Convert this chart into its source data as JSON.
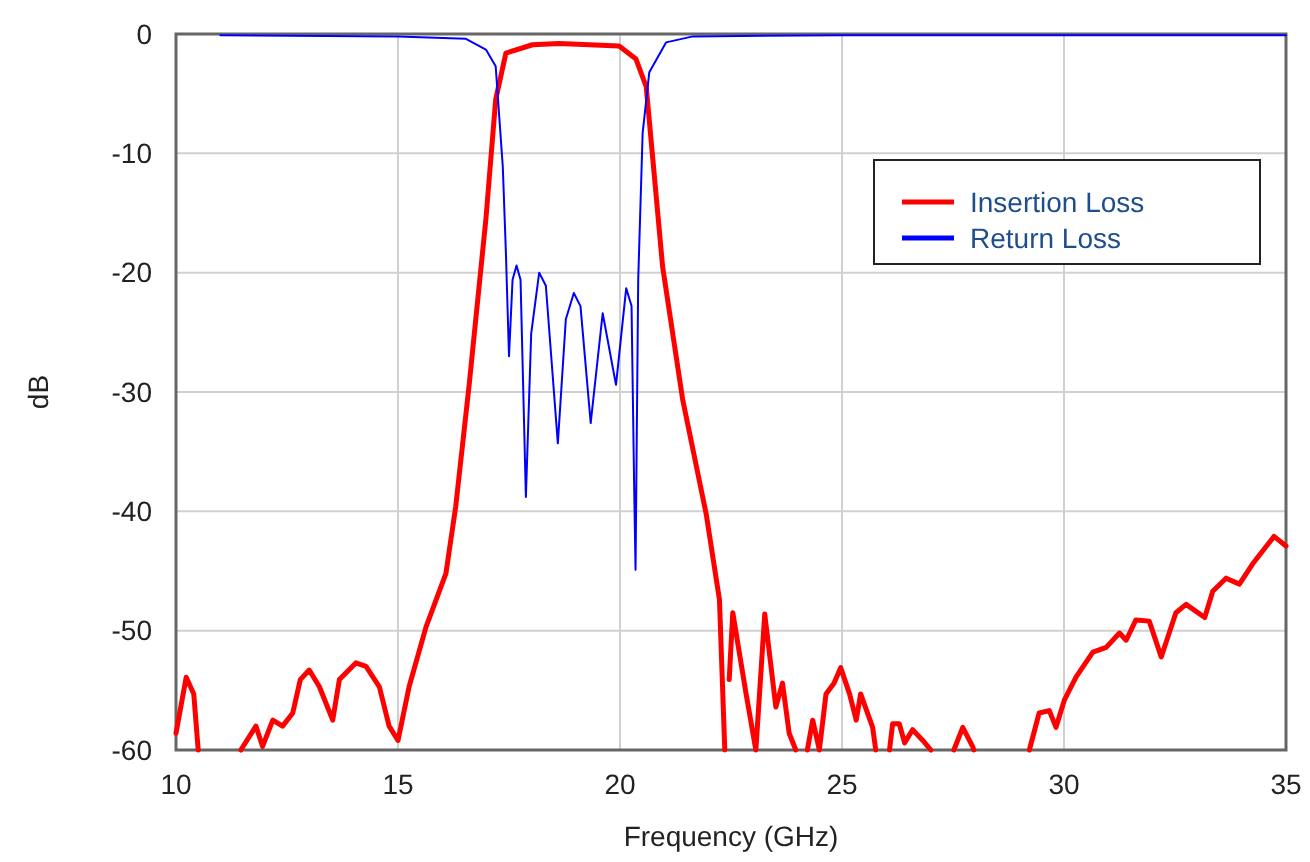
{
  "chart_data": {
    "type": "line",
    "xlabel": "Frequency (GHz)",
    "ylabel": "dB",
    "xlim": [
      10,
      35
    ],
    "ylim": [
      -60,
      0
    ],
    "xticks": [
      10,
      15,
      20,
      25,
      30,
      35
    ],
    "yticks": [
      -60,
      -50,
      -40,
      -30,
      -20,
      -10,
      0
    ],
    "grid": true,
    "legend": "top right",
    "marker": "none",
    "line_style": "solid",
    "series": [
      {
        "name": "Insertion Loss",
        "color": "#ff0000",
        "x": [
          10.0,
          10.23,
          10.4,
          10.5,
          10.55,
          11.4,
          11.46,
          11.8,
          11.95,
          12.18,
          12.4,
          12.63,
          12.8,
          13.0,
          13.23,
          13.53,
          13.68,
          14.05,
          14.28,
          14.58,
          14.8,
          15.0,
          15.25,
          15.63,
          16.08,
          16.3,
          16.6,
          16.98,
          17.2,
          17.43,
          18.03,
          18.63,
          19.98,
          20.36,
          20.59,
          20.96,
          21.41,
          21.94,
          22.24,
          22.36,
          22.4,
          22.46,
          22.54,
          22.84,
          23.06,
          23.26,
          23.51,
          23.66,
          23.81,
          23.96,
          24.0,
          24.22,
          24.34,
          24.49,
          24.64,
          24.82,
          24.97,
          25.17,
          25.32,
          25.42,
          25.69,
          25.76,
          25.8,
          26.07,
          26.14,
          26.29,
          26.41,
          26.59,
          26.82,
          27.0,
          27.2,
          27.52,
          27.72,
          27.94,
          27.97,
          28.5,
          29.22,
          29.44,
          29.67,
          29.82,
          30.01,
          30.27,
          30.65,
          30.95,
          31.25,
          31.4,
          31.62,
          31.92,
          32.19,
          32.52,
          32.75,
          33.17,
          33.35,
          33.65,
          33.95,
          34.25,
          34.73,
          35.0
        ],
        "values": [
          -58.6,
          -53.9,
          -55.3,
          -60,
          null,
          null,
          -60,
          -58,
          -59.7,
          -57.5,
          -58,
          -56.9,
          -54.1,
          -53.3,
          -54.7,
          -57.5,
          -54.1,
          -52.7,
          -53,
          -54.7,
          -58,
          -59.2,
          -54.7,
          -49.7,
          -45.2,
          -39.6,
          -29.5,
          -15.5,
          -5.5,
          -1.6,
          -0.9,
          -0.8,
          -1.0,
          -2.1,
          -4.4,
          -19.5,
          -30.6,
          -40.2,
          -47.4,
          -60,
          null,
          -54.1,
          -48.5,
          -55.3,
          -60,
          -48.6,
          -56.4,
          -54.4,
          -58.6,
          -60,
          null,
          -60,
          -57.5,
          -60,
          -55.3,
          -54.4,
          -53.1,
          -55.3,
          -57.5,
          -55.3,
          -58.1,
          -60,
          null,
          -60,
          -57.8,
          -57.8,
          -59.4,
          -58.3,
          -59.2,
          -60,
          null,
          -60,
          -58.1,
          -59.7,
          -60,
          null,
          -60,
          -56.9,
          -56.7,
          -58.1,
          -55.8,
          -53.9,
          -51.8,
          -51.4,
          -50.2,
          -50.8,
          -49.1,
          -49.2,
          -52.2,
          -48.5,
          -47.8,
          -48.9,
          -46.7,
          -45.6,
          -46.1,
          -44.4,
          -42.1,
          -42.9
        ]
      },
      {
        "name": "Return Loss",
        "color": "#0000ff",
        "x": [
          11.0,
          15.0,
          16.53,
          16.98,
          17.2,
          17.36,
          17.43,
          17.5,
          17.58,
          17.67,
          17.76,
          17.88,
          18.0,
          18.18,
          18.33,
          18.6,
          18.78,
          18.96,
          19.11,
          19.34,
          19.61,
          19.91,
          20.14,
          20.26,
          20.32,
          20.35,
          20.41,
          20.51,
          20.66,
          21.04,
          21.64,
          25.0,
          35.0
        ],
        "values": [
          -0.1,
          -0.2,
          -0.4,
          -1.3,
          -2.7,
          -11.1,
          -18.3,
          -27,
          -20.6,
          -19.4,
          -20.6,
          -38.8,
          -25.1,
          -20,
          -21.1,
          -34.3,
          -23.9,
          -21.7,
          -22.8,
          -32.6,
          -23.4,
          -29.4,
          -21.3,
          -22.8,
          -38.2,
          -44.9,
          -20.6,
          -8.3,
          -3.2,
          -0.7,
          -0.2,
          -0.1,
          -0.1
        ]
      }
    ]
  }
}
